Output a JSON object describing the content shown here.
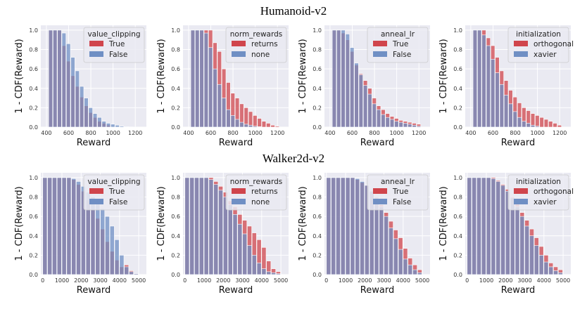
{
  "figure": {
    "row_titles": [
      "Humanoid-v2",
      "Walker2d-v2"
    ]
  },
  "colors": {
    "plot_bg": "#EAEAF2",
    "grid": "#FFFFFF",
    "red": "#D0454C",
    "blue": "#6F8FC4",
    "overlap": "#6E5A8A"
  },
  "chart_data": [
    {
      "type": "bar",
      "row": 0,
      "col": 0,
      "title": "",
      "xlabel": "Reward",
      "ylabel": "1 - CDF(Reward)",
      "xlim": [
        350,
        1300
      ],
      "ylim": [
        0,
        1.05
      ],
      "xticks": [
        400,
        600,
        800,
        1000,
        1200
      ],
      "yticks": [
        0.0,
        0.2,
        0.4,
        0.6,
        0.8,
        1.0
      ],
      "bin_width": 40,
      "legend": {
        "title": "value_clipping",
        "entries": [
          "True",
          "False"
        ],
        "position": "upper-right"
      },
      "series": [
        {
          "name": "True",
          "color": "#D0454C",
          "start": 420,
          "values": [
            1.0,
            1.0,
            1.0,
            0.84,
            0.68,
            0.53,
            0.42,
            0.31,
            0.22,
            0.15,
            0.1,
            0.06,
            0.04,
            0.02
          ]
        },
        {
          "name": "False",
          "color": "#6F8FC4",
          "start": 420,
          "values": [
            1.0,
            1.0,
            1.0,
            0.97,
            0.86,
            0.72,
            0.58,
            0.42,
            0.3,
            0.2,
            0.14,
            0.1,
            0.06,
            0.04,
            0.03,
            0.02,
            0.01,
            0.005,
            0.002,
            0.001
          ]
        }
      ]
    },
    {
      "type": "bar",
      "row": 0,
      "col": 1,
      "title": "",
      "xlabel": "Reward",
      "ylabel": "1 - CDF(Reward)",
      "xlim": [
        350,
        1300
      ],
      "ylim": [
        0,
        1.05
      ],
      "xticks": [
        400,
        600,
        800,
        1000,
        1200
      ],
      "yticks": [
        0.0,
        0.2,
        0.4,
        0.6,
        0.8,
        1.0
      ],
      "bin_width": 40,
      "legend": {
        "title": "norm_rewards",
        "entries": [
          "returns",
          "none"
        ],
        "position": "upper-right"
      },
      "series": [
        {
          "name": "returns",
          "color": "#D0454C",
          "start": 420,
          "values": [
            1.0,
            1.0,
            1.0,
            1.0,
            1.0,
            0.87,
            0.78,
            0.6,
            0.46,
            0.35,
            0.3,
            0.24,
            0.2,
            0.16,
            0.12,
            0.09,
            0.06,
            0.04,
            0.02,
            0.01
          ]
        },
        {
          "name": "none",
          "color": "#6F8FC4",
          "start": 420,
          "values": [
            1.0,
            1.0,
            1.0,
            0.97,
            0.82,
            0.6,
            0.44,
            0.3,
            0.18,
            0.12,
            0.08,
            0.05,
            0.03,
            0.02,
            0.01,
            0.005
          ]
        }
      ]
    },
    {
      "type": "bar",
      "row": 0,
      "col": 2,
      "title": "",
      "xlabel": "Reward",
      "ylabel": "1 - CDF(Reward)",
      "xlim": [
        350,
        1300
      ],
      "ylim": [
        0,
        1.05
      ],
      "xticks": [
        400,
        600,
        800,
        1000,
        1200
      ],
      "yticks": [
        0.0,
        0.2,
        0.4,
        0.6,
        0.8,
        1.0
      ],
      "bin_width": 40,
      "legend": {
        "title": "anneal_lr",
        "entries": [
          "True",
          "False"
        ],
        "position": "upper-right"
      },
      "series": [
        {
          "name": "True",
          "color": "#D0454C",
          "start": 420,
          "values": [
            1.0,
            1.0,
            0.97,
            0.9,
            0.78,
            0.64,
            0.55,
            0.48,
            0.4,
            0.3,
            0.22,
            0.18,
            0.14,
            0.11,
            0.09,
            0.07,
            0.06,
            0.05,
            0.04,
            0.03
          ]
        },
        {
          "name": "False",
          "color": "#6F8FC4",
          "start": 420,
          "values": [
            1.0,
            1.0,
            1.0,
            0.96,
            0.82,
            0.66,
            0.54,
            0.43,
            0.34,
            0.24,
            0.18,
            0.13,
            0.1,
            0.08,
            0.06,
            0.05,
            0.04,
            0.03,
            0.02,
            0.01
          ]
        }
      ]
    },
    {
      "type": "bar",
      "row": 0,
      "col": 3,
      "title": "",
      "xlabel": "Reward",
      "ylabel": "1 - CDF(Reward)",
      "xlim": [
        350,
        1300
      ],
      "ylim": [
        0,
        1.05
      ],
      "xticks": [
        400,
        600,
        800,
        1000,
        1200
      ],
      "yticks": [
        0.0,
        0.2,
        0.4,
        0.6,
        0.8,
        1.0
      ],
      "bin_width": 40,
      "legend": {
        "title": "initialization",
        "entries": [
          "orthogonal",
          "xavier"
        ],
        "position": "upper-right"
      },
      "series": [
        {
          "name": "orthogonal",
          "color": "#D0454C",
          "start": 420,
          "values": [
            1.0,
            1.0,
            1.0,
            0.92,
            0.84,
            0.72,
            0.58,
            0.48,
            0.38,
            0.31,
            0.25,
            0.2,
            0.17,
            0.14,
            0.12,
            0.1,
            0.08,
            0.06,
            0.04,
            0.02
          ]
        },
        {
          "name": "xavier",
          "color": "#6F8FC4",
          "start": 420,
          "values": [
            1.0,
            1.0,
            0.95,
            0.84,
            0.7,
            0.56,
            0.44,
            0.33,
            0.24,
            0.16,
            0.1,
            0.06,
            0.04,
            0.02,
            0.01
          ]
        }
      ]
    },
    {
      "type": "bar",
      "row": 1,
      "col": 0,
      "title": "",
      "xlabel": "Reward",
      "ylabel": "1 - CDF(Reward)",
      "xlim": [
        -100,
        5400
      ],
      "ylim": [
        0,
        1.05
      ],
      "xticks": [
        0,
        1000,
        2000,
        3000,
        4000,
        5000
      ],
      "yticks": [
        0.0,
        0.2,
        0.4,
        0.6,
        0.8,
        1.0
      ],
      "bin_width": 250,
      "legend": {
        "title": "value_clipping",
        "entries": [
          "True",
          "False"
        ],
        "position": "upper-right"
      },
      "series": [
        {
          "name": "True",
          "color": "#D0454C",
          "start": 0,
          "values": [
            1.0,
            1.0,
            1.0,
            1.0,
            1.0,
            1.0,
            0.98,
            0.93,
            0.86,
            0.77,
            0.67,
            0.58,
            0.47,
            0.34,
            0.24,
            0.15,
            0.08,
            0.1,
            0.04,
            0.01
          ]
        },
        {
          "name": "False",
          "color": "#6F8FC4",
          "start": 0,
          "values": [
            1.0,
            1.0,
            1.0,
            1.0,
            1.0,
            1.0,
            0.99,
            0.96,
            0.91,
            0.85,
            0.8,
            0.74,
            0.68,
            0.6,
            0.5,
            0.36,
            0.2,
            0.08,
            0.03,
            0.01
          ]
        }
      ]
    },
    {
      "type": "bar",
      "row": 1,
      "col": 1,
      "title": "",
      "xlabel": "Reward",
      "ylabel": "1 - CDF(Reward)",
      "xlim": [
        -100,
        5400
      ],
      "ylim": [
        0,
        1.05
      ],
      "xticks": [
        0,
        1000,
        2000,
        3000,
        4000,
        5000
      ],
      "yticks": [
        0.0,
        0.2,
        0.4,
        0.6,
        0.8,
        1.0
      ],
      "bin_width": 250,
      "legend": {
        "title": "norm_rewards",
        "entries": [
          "returns",
          "none"
        ],
        "position": "upper-right"
      },
      "series": [
        {
          "name": "returns",
          "color": "#D0454C",
          "start": 0,
          "values": [
            1.0,
            1.0,
            1.0,
            1.0,
            1.0,
            1.0,
            0.96,
            0.91,
            0.85,
            0.76,
            0.7,
            0.62,
            0.56,
            0.5,
            0.43,
            0.36,
            0.28,
            0.14,
            0.06,
            0.03
          ]
        },
        {
          "name": "none",
          "color": "#6F8FC4",
          "start": 0,
          "values": [
            1.0,
            1.0,
            1.0,
            1.0,
            1.0,
            0.98,
            0.93,
            0.87,
            0.8,
            0.72,
            0.62,
            0.52,
            0.42,
            0.3,
            0.2,
            0.12,
            0.06,
            0.03,
            0.02,
            0.01
          ]
        }
      ]
    },
    {
      "type": "bar",
      "row": 1,
      "col": 2,
      "title": "",
      "xlabel": "Reward",
      "ylabel": "1 - CDF(Reward)",
      "xlim": [
        -100,
        5400
      ],
      "ylim": [
        0,
        1.05
      ],
      "xticks": [
        0,
        1000,
        2000,
        3000,
        4000,
        5000
      ],
      "yticks": [
        0.0,
        0.2,
        0.4,
        0.6,
        0.8,
        1.0
      ],
      "bin_width": 250,
      "legend": {
        "title": "anneal_lr",
        "entries": [
          "True",
          "False"
        ],
        "position": "upper-right"
      },
      "series": [
        {
          "name": "True",
          "color": "#D0454C",
          "start": 0,
          "values": [
            1.0,
            1.0,
            1.0,
            1.0,
            1.0,
            1.0,
            0.98,
            0.95,
            0.92,
            0.86,
            0.8,
            0.72,
            0.64,
            0.55,
            0.46,
            0.38,
            0.27,
            0.17,
            0.1,
            0.05
          ]
        },
        {
          "name": "False",
          "color": "#6F8FC4",
          "start": 0,
          "values": [
            1.0,
            1.0,
            1.0,
            1.0,
            1.0,
            1.0,
            0.99,
            0.96,
            0.92,
            0.86,
            0.79,
            0.7,
            0.6,
            0.48,
            0.37,
            0.26,
            0.16,
            0.1,
            0.05,
            0.02
          ]
        }
      ]
    },
    {
      "type": "bar",
      "row": 1,
      "col": 3,
      "title": "",
      "xlabel": "Reward",
      "ylabel": "1 - CDF(Reward)",
      "xlim": [
        -100,
        5400
      ],
      "ylim": [
        0,
        1.05
      ],
      "xticks": [
        0,
        1000,
        2000,
        3000,
        4000,
        5000
      ],
      "yticks": [
        0.0,
        0.2,
        0.4,
        0.6,
        0.8,
        1.0
      ],
      "bin_width": 250,
      "legend": {
        "title": "initialization",
        "entries": [
          "orthogonal",
          "xavier"
        ],
        "position": "upper-right"
      },
      "series": [
        {
          "name": "orthogonal",
          "color": "#D0454C",
          "start": 0,
          "values": [
            1.0,
            1.0,
            1.0,
            1.0,
            1.0,
            1.0,
            0.97,
            0.93,
            0.88,
            0.8,
            0.73,
            0.64,
            0.56,
            0.47,
            0.38,
            0.29,
            0.2,
            0.12,
            0.08,
            0.05
          ]
        },
        {
          "name": "xavier",
          "color": "#6F8FC4",
          "start": 0,
          "values": [
            1.0,
            1.0,
            1.0,
            1.0,
            1.0,
            0.99,
            0.96,
            0.92,
            0.86,
            0.79,
            0.7,
            0.6,
            0.5,
            0.4,
            0.3,
            0.2,
            0.13,
            0.08,
            0.04,
            0.02
          ]
        }
      ]
    }
  ]
}
